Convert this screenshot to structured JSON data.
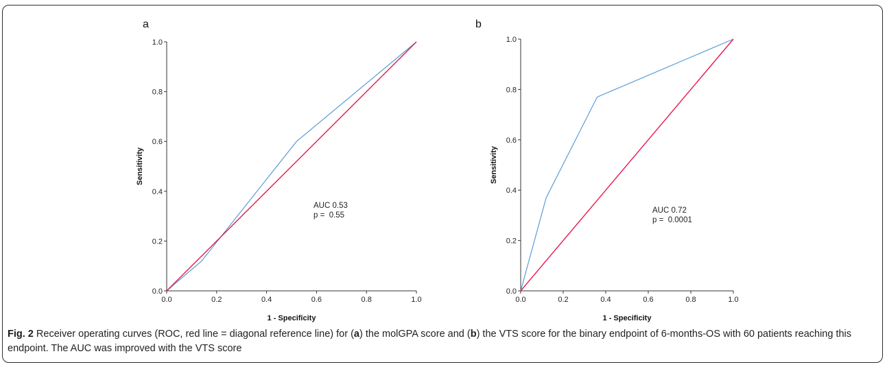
{
  "chart_data": [
    {
      "panel_label": "a",
      "type": "line",
      "xlabel": "1 - Specificity",
      "ylabel": "Sensitivity",
      "xlim": [
        0,
        1
      ],
      "ylim": [
        0,
        1
      ],
      "xticks": [
        "0.0",
        "0.2",
        "0.4",
        "0.6",
        "0.8",
        "1.0"
      ],
      "yticks": [
        "0.0",
        "0.2",
        "0.4",
        "0.6",
        "0.8",
        "1.0"
      ],
      "grid": false,
      "series": [
        {
          "role": "roc-curve",
          "color": "#5b9bd5",
          "x": [
            0.0,
            0.14,
            0.52,
            1.0
          ],
          "y": [
            0.0,
            0.12,
            0.6,
            1.0
          ]
        },
        {
          "role": "reference-line",
          "color": "#e8174b",
          "x": [
            0.0,
            1.0
          ],
          "y": [
            0.0,
            1.0
          ]
        }
      ],
      "annotation": {
        "auc_line": "AUC 0.53",
        "p_line": "p =  0.55"
      }
    },
    {
      "panel_label": "b",
      "type": "line",
      "xlabel": "1 - Specificity",
      "ylabel": "Sensitivity",
      "xlim": [
        0,
        1
      ],
      "ylim": [
        0,
        1
      ],
      "xticks": [
        "0.0",
        "0.2",
        "0.4",
        "0.6",
        "0.8",
        "1.0"
      ],
      "yticks": [
        "0.0",
        "0.2",
        "0.4",
        "0.6",
        "0.8",
        "1.0"
      ],
      "grid": false,
      "series": [
        {
          "role": "roc-curve",
          "color": "#5b9bd5",
          "x": [
            0.0,
            0.12,
            0.36,
            1.0
          ],
          "y": [
            0.0,
            0.37,
            0.77,
            1.0
          ]
        },
        {
          "role": "reference-line",
          "color": "#e8174b",
          "x": [
            0.0,
            1.0
          ],
          "y": [
            0.0,
            1.0
          ]
        }
      ],
      "annotation": {
        "auc_line": "AUC 0.72",
        "p_line": "p =  0.0001"
      }
    }
  ],
  "caption": {
    "fig_label": "Fig. 2",
    "text_1": " Receiver operating curves (ROC, red line = diagonal reference line) for (",
    "ref_a": "a",
    "text_2": ") the molGPA score and (",
    "ref_b": "b",
    "text_3": ") the VTS score for the binary endpoint of 6-months-OS with 60 patients reaching this endpoint. The AUC was improved with the VTS score"
  }
}
